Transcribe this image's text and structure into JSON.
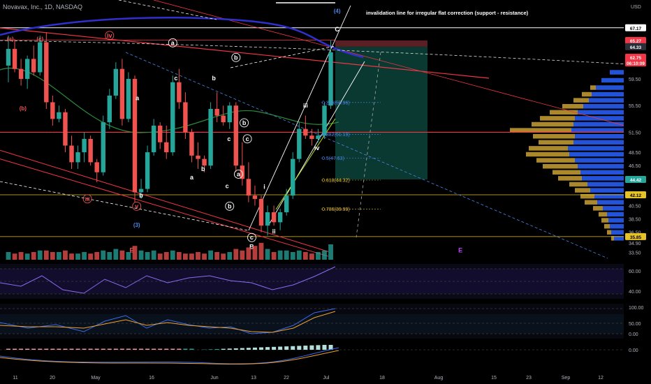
{
  "header": {
    "symbol_line": "Novavax, Inc., 1D, NASDAQ",
    "currency": "USD"
  },
  "annotation": {
    "invalidation_note": "invalidation line for irregular flat correction (support - resistance)"
  },
  "colors": {
    "background": "#000000",
    "up": "#26a69a",
    "down": "#ef5350",
    "fib": "#e6c229",
    "fib_blue": "#4a86e8",
    "volume_profile_blue": "#2962ff",
    "volume_profile_gold": "#c8a033",
    "resistance": "#f23645",
    "white_line": "#ffffff",
    "target_zone": "#0b3f36",
    "stop_zone": "#5a1f22"
  },
  "chart_data": {
    "type": "candlestick",
    "x_axis_labels": [
      "11",
      "20",
      "May",
      "16",
      "Jun",
      "13",
      "22",
      "Jul",
      "18",
      "Aug",
      "15",
      "23",
      "Sep",
      "12"
    ],
    "y_axis_ticks": [
      "59.50",
      "55.50",
      "51.50",
      "48.50",
      "46.50",
      "40.50",
      "38.50",
      "36.50",
      "34.90",
      "33.50"
    ],
    "y_range": [
      32.8,
      70.5
    ],
    "price_tags": [
      {
        "label": "67.17",
        "value": 67.17,
        "style": "white"
      },
      {
        "label": "65.27",
        "value": 65.27,
        "style": "red"
      },
      {
        "label": "64.33",
        "value": 64.33,
        "style": "dark"
      },
      {
        "label": "62.75",
        "value": 62.75,
        "style": "red"
      },
      {
        "label": "06:10:09",
        "value": 61.9,
        "style": "red"
      },
      {
        "label": "44.42",
        "value": 44.42,
        "style": "green"
      },
      {
        "label": "42.12",
        "value": 42.12,
        "style": "yellow"
      },
      {
        "label": "35.85",
        "value": 35.85,
        "style": "yellow"
      }
    ],
    "fib_levels": [
      {
        "label": "0.236(55.96)",
        "value": 55.96,
        "color": "#4a86e8"
      },
      {
        "label": "0.382(51.19)",
        "value": 51.19,
        "color": "#4a86e8"
      },
      {
        "label": "0.5(47.63)",
        "value": 47.63,
        "color": "#4a86e8"
      },
      {
        "label": "0.618(44.32)",
        "value": 44.32,
        "color": "#e6c229"
      },
      {
        "label": "0.786(39.99)",
        "value": 39.99,
        "color": "#e6c229"
      }
    ],
    "wave_labels": [
      {
        "text": "(4)",
        "t": 52,
        "v": 69.4,
        "color": "#4a86e8",
        "circle": false
      },
      {
        "text": "C",
        "t": 52,
        "v": 66.6,
        "color": "#ffffff",
        "circle": false
      },
      {
        "text": "a",
        "t": 26,
        "v": 64.6,
        "color": "#ffffff",
        "circle": true
      },
      {
        "text": "b",
        "t": 36,
        "v": 62.4,
        "color": "#ffffff",
        "circle": true
      },
      {
        "text": "iv",
        "t": 16,
        "v": 65.7,
        "color": "#ef5350",
        "circle": true
      },
      {
        "text": "(a)",
        "t": 0.3,
        "v": 65.2,
        "color": "#ef5350",
        "circle": false
      },
      {
        "text": "(c)",
        "t": 5,
        "v": 65.2,
        "color": "#ef5350",
        "circle": false
      },
      {
        "text": "(b)",
        "t": 2.3,
        "v": 54.8,
        "color": "#ef5350",
        "circle": false
      },
      {
        "text": "c",
        "t": 26.5,
        "v": 59.3,
        "color": "#ffffff",
        "circle": false
      },
      {
        "text": "b",
        "t": 32.5,
        "v": 59.3,
        "color": "#ffffff",
        "circle": false
      },
      {
        "text": "a",
        "t": 20.4,
        "v": 56.3,
        "color": "#ffffff",
        "circle": false
      },
      {
        "text": "b",
        "t": 37.3,
        "v": 52.6,
        "color": "#ffffff",
        "circle": true
      },
      {
        "text": "c",
        "t": 37.8,
        "v": 50.2,
        "color": "#ffffff",
        "circle": true
      },
      {
        "text": "c",
        "t": 34.9,
        "v": 50.2,
        "color": "#ffffff",
        "circle": false
      },
      {
        "text": "a",
        "t": 36.4,
        "v": 44.9,
        "color": "#ffffff",
        "circle": true
      },
      {
        "text": "a",
        "t": 29,
        "v": 44.4,
        "color": "#ffffff",
        "circle": false
      },
      {
        "text": "b",
        "t": 30.8,
        "v": 45.7,
        "color": "#ffffff",
        "circle": false
      },
      {
        "text": "c",
        "t": 34.6,
        "v": 43.1,
        "color": "#ffffff",
        "circle": false
      },
      {
        "text": "iii",
        "t": 12.5,
        "v": 41.2,
        "color": "#ef5350",
        "circle": true
      },
      {
        "text": "b",
        "t": 21,
        "v": 41.7,
        "color": "#ffffff",
        "circle": false
      },
      {
        "text": "v",
        "t": 20.3,
        "v": 40.1,
        "color": "#ef5350",
        "circle": true
      },
      {
        "text": "b",
        "t": 35,
        "v": 40.1,
        "color": "#ffffff",
        "circle": true
      },
      {
        "text": "(3)",
        "t": 20.3,
        "v": 37.3,
        "color": "#4a86e8",
        "circle": false
      },
      {
        "text": "c",
        "t": 38.5,
        "v": 35.4,
        "color": "#ffffff",
        "circle": true
      },
      {
        "text": "B",
        "t": 38.5,
        "v": 34.0,
        "color": "#ffffff",
        "circle": false
      },
      {
        "text": "i",
        "t": 40.5,
        "v": 43.0,
        "color": "#ffffff",
        "circle": false
      },
      {
        "text": "ii",
        "t": 42,
        "v": 36.3,
        "color": "#ffffff",
        "circle": false
      },
      {
        "text": "iii",
        "t": 47,
        "v": 55.2,
        "color": "#ffffff",
        "circle": false
      },
      {
        "text": "iv",
        "t": 48.8,
        "v": 48.8,
        "color": "#ffffff",
        "circle": false
      },
      {
        "text": "E",
        "t": 19.5,
        "v": 33.5,
        "color": "#ef5350",
        "circle": false
      },
      {
        "text": "E",
        "t": 71.5,
        "v": 33.5,
        "color": "#c040ff",
        "circle": false
      }
    ],
    "candles": [
      {
        "t": 0,
        "o": 61.5,
        "h": 66.0,
        "l": 59.0,
        "c": 64.0
      },
      {
        "t": 1,
        "o": 64.0,
        "h": 65.5,
        "l": 60.5,
        "c": 61.0
      },
      {
        "t": 2,
        "o": 61.0,
        "h": 62.5,
        "l": 58.5,
        "c": 59.5
      },
      {
        "t": 3,
        "o": 59.5,
        "h": 63.0,
        "l": 58.0,
        "c": 62.5
      },
      {
        "t": 4,
        "o": 62.5,
        "h": 64.5,
        "l": 60.0,
        "c": 60.5
      },
      {
        "t": 5,
        "o": 60.5,
        "h": 66.0,
        "l": 60.0,
        "c": 65.0
      },
      {
        "t": 6,
        "o": 65.0,
        "h": 66.5,
        "l": 55.0,
        "c": 56.0
      },
      {
        "t": 7,
        "o": 56.0,
        "h": 57.0,
        "l": 52.5,
        "c": 53.5
      },
      {
        "t": 8,
        "o": 53.5,
        "h": 55.5,
        "l": 53.0,
        "c": 54.5
      },
      {
        "t": 9,
        "o": 54.5,
        "h": 55.0,
        "l": 48.5,
        "c": 49.5
      },
      {
        "t": 10,
        "o": 49.5,
        "h": 51.0,
        "l": 46.0,
        "c": 47.0
      },
      {
        "t": 11,
        "o": 47.0,
        "h": 49.5,
        "l": 46.0,
        "c": 48.5
      },
      {
        "t": 12,
        "o": 48.5,
        "h": 51.5,
        "l": 47.0,
        "c": 50.5
      },
      {
        "t": 13,
        "o": 50.5,
        "h": 51.0,
        "l": 46.5,
        "c": 47.0
      },
      {
        "t": 14,
        "o": 47.0,
        "h": 47.5,
        "l": 44.0,
        "c": 45.5
      },
      {
        "t": 15,
        "o": 45.5,
        "h": 54.0,
        "l": 45.0,
        "c": 53.0
      },
      {
        "t": 16,
        "o": 53.0,
        "h": 58.0,
        "l": 52.0,
        "c": 57.0
      },
      {
        "t": 17,
        "o": 57.0,
        "h": 62.0,
        "l": 56.5,
        "c": 61.0
      },
      {
        "t": 18,
        "o": 61.0,
        "h": 62.5,
        "l": 52.5,
        "c": 53.5
      },
      {
        "t": 19,
        "o": 53.5,
        "h": 60.5,
        "l": 53.0,
        "c": 59.5
      },
      {
        "t": 20,
        "o": 59.5,
        "h": 60.0,
        "l": 41.0,
        "c": 42.5
      },
      {
        "t": 21,
        "o": 42.5,
        "h": 44.5,
        "l": 41.5,
        "c": 43.0
      },
      {
        "t": 22,
        "o": 43.0,
        "h": 49.5,
        "l": 42.5,
        "c": 48.5
      },
      {
        "t": 23,
        "o": 48.5,
        "h": 53.5,
        "l": 48.0,
        "c": 52.5
      },
      {
        "t": 24,
        "o": 52.5,
        "h": 53.0,
        "l": 49.0,
        "c": 50.0
      },
      {
        "t": 25,
        "o": 50.0,
        "h": 52.5,
        "l": 47.5,
        "c": 48.5
      },
      {
        "t": 26,
        "o": 48.5,
        "h": 60.0,
        "l": 48.0,
        "c": 59.0
      },
      {
        "t": 27,
        "o": 59.0,
        "h": 61.0,
        "l": 55.0,
        "c": 56.0
      },
      {
        "t": 28,
        "o": 56.0,
        "h": 57.5,
        "l": 50.5,
        "c": 51.5
      },
      {
        "t": 29,
        "o": 51.5,
        "h": 52.0,
        "l": 47.0,
        "c": 48.0
      },
      {
        "t": 30,
        "o": 48.0,
        "h": 50.0,
        "l": 46.0,
        "c": 47.5
      },
      {
        "t": 31,
        "o": 47.5,
        "h": 48.0,
        "l": 45.5,
        "c": 46.5
      },
      {
        "t": 32,
        "o": 46.5,
        "h": 56.0,
        "l": 46.0,
        "c": 55.0
      },
      {
        "t": 33,
        "o": 55.0,
        "h": 57.5,
        "l": 53.0,
        "c": 54.0
      },
      {
        "t": 34,
        "o": 54.0,
        "h": 55.5,
        "l": 52.5,
        "c": 53.0
      },
      {
        "t": 35,
        "o": 53.0,
        "h": 56.0,
        "l": 52.0,
        "c": 55.5
      },
      {
        "t": 36,
        "o": 55.5,
        "h": 56.0,
        "l": 45.5,
        "c": 46.5
      },
      {
        "t": 37,
        "o": 46.5,
        "h": 50.0,
        "l": 43.5,
        "c": 44.5
      },
      {
        "t": 38,
        "o": 44.5,
        "h": 47.0,
        "l": 41.0,
        "c": 42.0
      },
      {
        "t": 39,
        "o": 42.0,
        "h": 43.5,
        "l": 40.5,
        "c": 41.5
      },
      {
        "t": 40,
        "o": 41.5,
        "h": 42.0,
        "l": 36.5,
        "c": 37.5
      },
      {
        "t": 41,
        "o": 37.5,
        "h": 40.5,
        "l": 36.0,
        "c": 39.5
      },
      {
        "t": 42,
        "o": 39.5,
        "h": 40.5,
        "l": 37.5,
        "c": 38.0
      },
      {
        "t": 43,
        "o": 38.0,
        "h": 40.0,
        "l": 36.8,
        "c": 39.5
      },
      {
        "t": 44,
        "o": 39.5,
        "h": 43.0,
        "l": 39.0,
        "c": 42.0
      },
      {
        "t": 45,
        "o": 42.0,
        "h": 48.5,
        "l": 41.5,
        "c": 47.5
      },
      {
        "t": 46,
        "o": 47.5,
        "h": 53.0,
        "l": 47.0,
        "c": 52.0
      },
      {
        "t": 47,
        "o": 52.0,
        "h": 54.0,
        "l": 50.5,
        "c": 51.0
      },
      {
        "t": 48,
        "o": 51.0,
        "h": 52.0,
        "l": 49.5,
        "c": 50.5
      },
      {
        "t": 49,
        "o": 50.5,
        "h": 52.0,
        "l": 50.0,
        "c": 51.0
      },
      {
        "t": 50,
        "o": 51.0,
        "h": 56.0,
        "l": 50.5,
        "c": 55.5
      },
      {
        "t": 51,
        "o": 55.5,
        "h": 65.3,
        "l": 55.0,
        "c": 63.5
      }
    ],
    "volume": [
      5,
      4,
      5,
      4,
      5,
      6,
      6,
      5,
      5,
      6,
      4,
      4,
      5,
      4,
      5,
      6,
      5,
      7,
      6,
      5,
      9,
      6,
      5,
      6,
      4,
      5,
      6,
      5,
      4,
      4,
      5,
      4,
      6,
      5,
      4,
      5,
      7,
      6,
      8,
      9,
      11,
      7,
      5,
      6,
      6,
      5,
      6,
      5,
      4,
      5,
      6,
      10
    ],
    "rsi_label_ticks": [
      "60.00",
      "40.00"
    ],
    "stoch_label_ticks": [
      "100.00",
      "50.00",
      "0.00"
    ],
    "macd_label_ticks": [
      "0.00"
    ],
    "trade_box": {
      "entry": 64.33,
      "stop": 65.27,
      "target": 44.42
    },
    "grid": false,
    "legend": "none"
  }
}
